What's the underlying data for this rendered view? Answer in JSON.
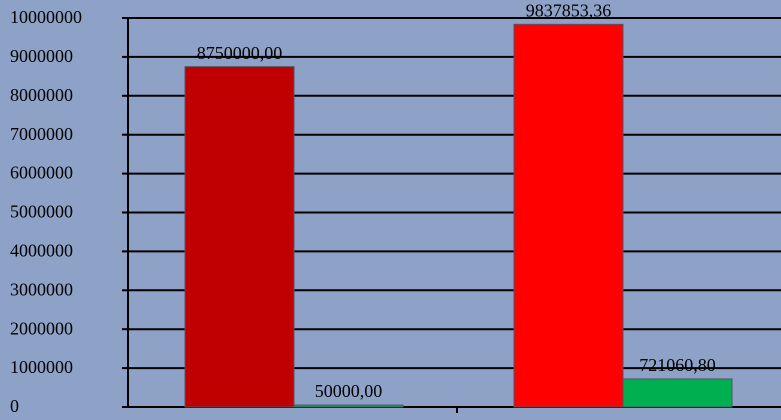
{
  "chart_data": {
    "type": "bar",
    "categories": [
      null,
      null
    ],
    "series": [
      {
        "colors": [
          "#c00000",
          "#ff0000"
        ],
        "values": [
          8750000,
          9837853.36
        ],
        "value_labels": [
          "8750000,00",
          "9837853,36"
        ]
      },
      {
        "colors": [
          "#00b050",
          "#00b050"
        ],
        "values": [
          50000,
          721060.8
        ],
        "value_labels": [
          "50000,00",
          "721060,80"
        ]
      }
    ],
    "ylim": [
      0,
      10000000
    ],
    "yticks": [
      0,
      1000000,
      2000000,
      3000000,
      4000000,
      5000000,
      6000000,
      7000000,
      8000000,
      9000000,
      10000000
    ],
    "grid": true
  }
}
